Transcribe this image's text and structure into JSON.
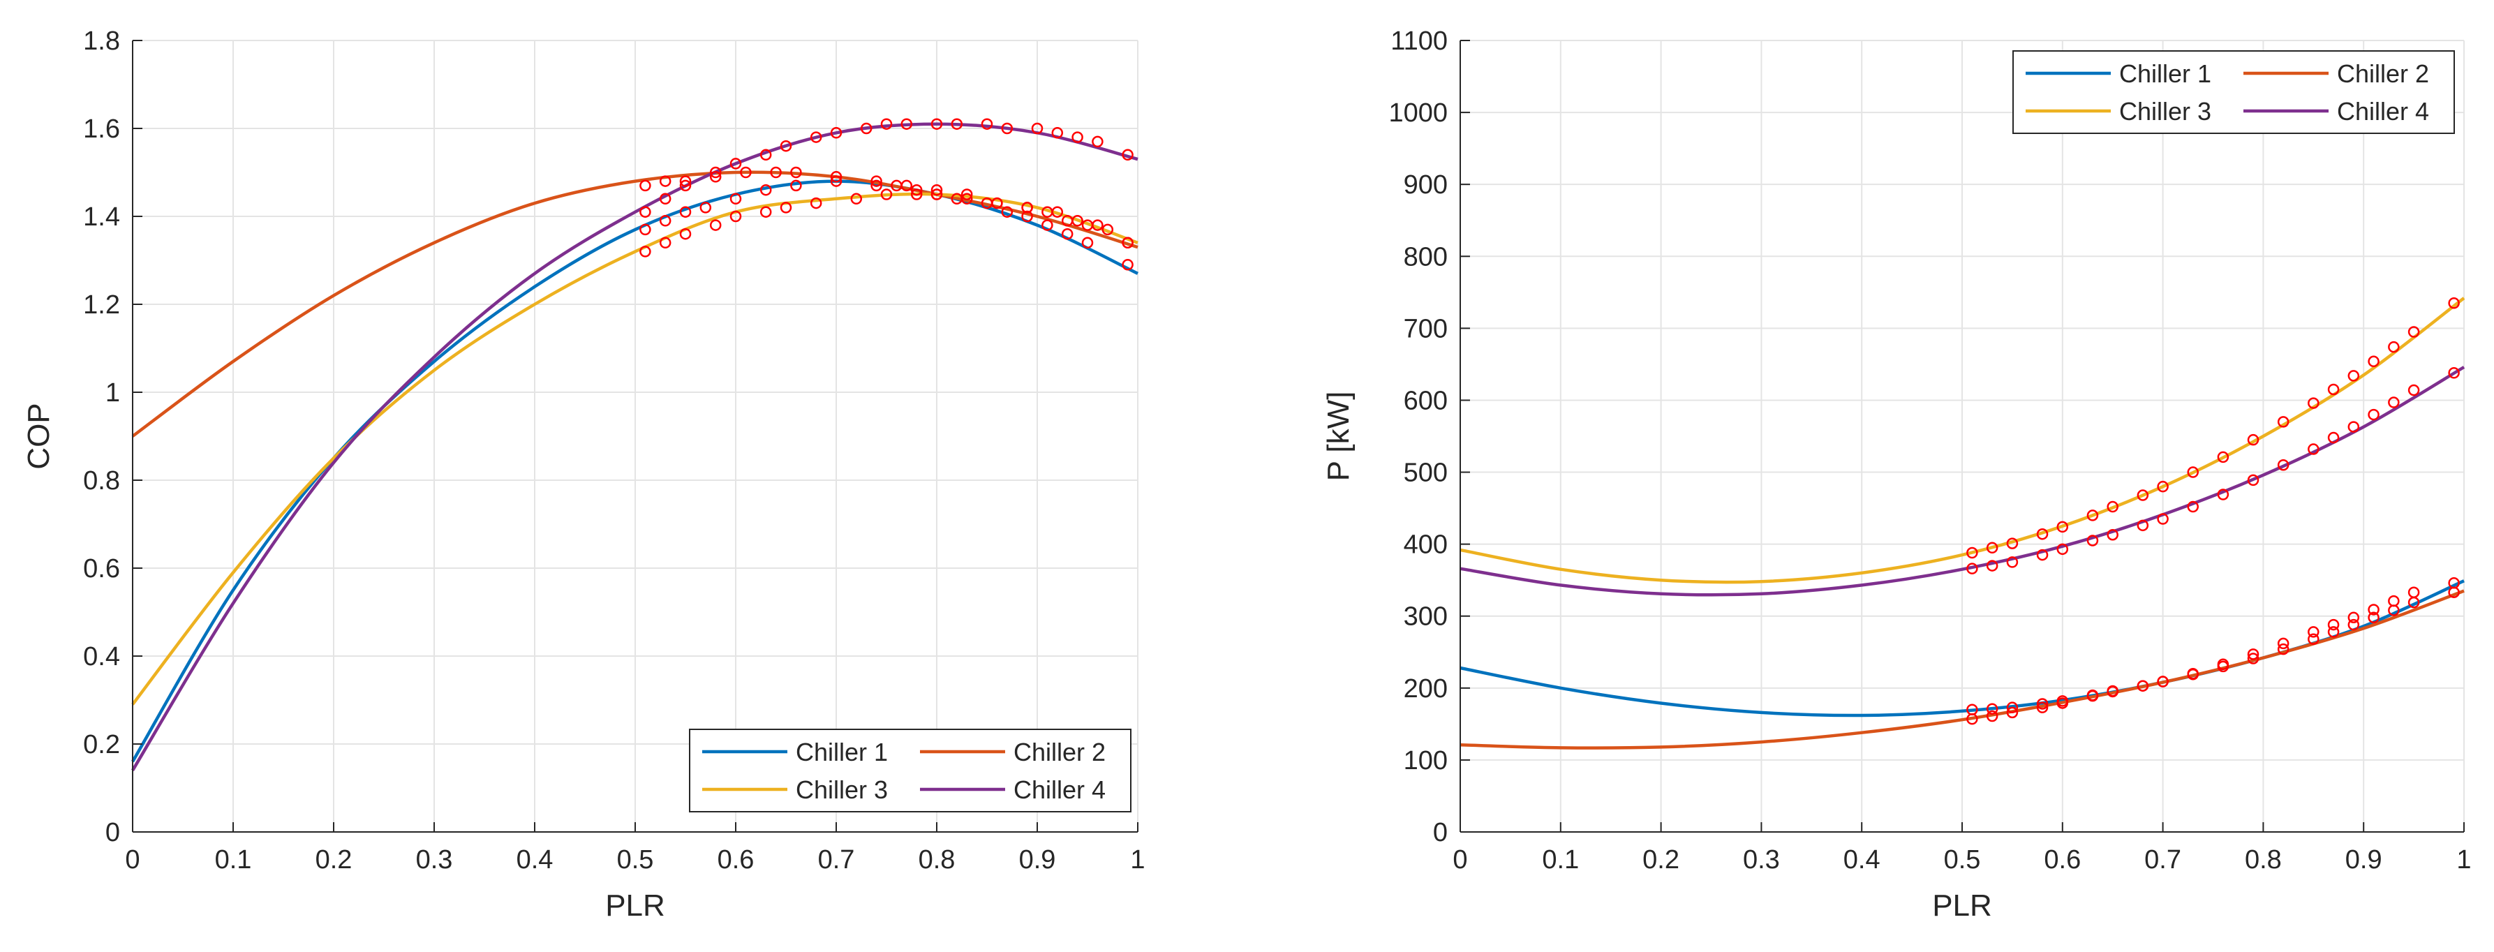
{
  "chart_data": [
    {
      "type": "line",
      "title": "",
      "xlabel": "PLR",
      "ylabel": "COP",
      "xlim": [
        0,
        1
      ],
      "ylim": [
        0,
        1.8
      ],
      "xticks": [
        0,
        0.1,
        0.2,
        0.3,
        0.4,
        0.5,
        0.6,
        0.7,
        0.8,
        0.9,
        1
      ],
      "yticks": [
        0,
        0.2,
        0.4,
        0.6,
        0.8,
        1,
        1.2,
        1.4,
        1.6,
        1.8
      ],
      "x_tick_labels": [
        "0",
        "0.1",
        "0.2",
        "0.3",
        "0.4",
        "0.5",
        "0.6",
        "0.7",
        "0.8",
        "0.9",
        "1"
      ],
      "y_tick_labels": [
        "0",
        "0.2",
        "0.4",
        "0.6",
        "0.8",
        "1",
        "1.2",
        "1.4",
        "1.6",
        "1.8"
      ],
      "grid": true,
      "legend_position": "bottom-right",
      "series": [
        {
          "name": "Chiller 1",
          "color": "#0072BD",
          "x": [
            0,
            0.1,
            0.2,
            0.3,
            0.4,
            0.5,
            0.6,
            0.7,
            0.8,
            0.9,
            1
          ],
          "values": [
            0.16,
            0.55,
            0.85,
            1.07,
            1.24,
            1.37,
            1.45,
            1.48,
            1.45,
            1.38,
            1.27
          ]
        },
        {
          "name": "Chiller 2",
          "color": "#D95319",
          "x": [
            0,
            0.1,
            0.2,
            0.3,
            0.4,
            0.5,
            0.6,
            0.7,
            0.8,
            0.9,
            1
          ],
          "values": [
            0.9,
            1.07,
            1.22,
            1.34,
            1.43,
            1.48,
            1.5,
            1.49,
            1.45,
            1.4,
            1.33
          ]
        },
        {
          "name": "Chiller 3",
          "color": "#EDB120",
          "x": [
            0,
            0.1,
            0.2,
            0.3,
            0.4,
            0.5,
            0.6,
            0.7,
            0.8,
            0.9,
            1
          ],
          "values": [
            0.29,
            0.59,
            0.85,
            1.05,
            1.2,
            1.32,
            1.41,
            1.44,
            1.45,
            1.42,
            1.34
          ]
        },
        {
          "name": "Chiller 4",
          "color": "#7E2F8E",
          "x": [
            0,
            0.1,
            0.2,
            0.3,
            0.4,
            0.5,
            0.6,
            0.7,
            0.8,
            0.9,
            1
          ],
          "values": [
            0.14,
            0.52,
            0.84,
            1.08,
            1.27,
            1.41,
            1.52,
            1.59,
            1.61,
            1.59,
            1.53
          ]
        }
      ],
      "markers": [
        {
          "series": "Chiller 1",
          "x": [
            0.51,
            0.53,
            0.55,
            0.57,
            0.6,
            0.63,
            0.66,
            0.7,
            0.74,
            0.76,
            0.78,
            0.8,
            0.82,
            0.85,
            0.87,
            0.89,
            0.91,
            0.93,
            0.95,
            0.99
          ],
          "values": [
            1.37,
            1.39,
            1.41,
            1.42,
            1.44,
            1.46,
            1.47,
            1.48,
            1.47,
            1.47,
            1.46,
            1.45,
            1.44,
            1.43,
            1.41,
            1.4,
            1.38,
            1.36,
            1.34,
            1.29
          ]
        },
        {
          "series": "Chiller 2",
          "x": [
            0.51,
            0.53,
            0.55,
            0.58,
            0.61,
            0.64,
            0.66,
            0.7,
            0.74,
            0.77,
            0.8,
            0.83,
            0.86,
            0.89,
            0.91,
            0.93,
            0.95,
            0.97,
            0.99
          ],
          "values": [
            1.47,
            1.48,
            1.48,
            1.49,
            1.5,
            1.5,
            1.5,
            1.49,
            1.48,
            1.47,
            1.46,
            1.45,
            1.43,
            1.42,
            1.41,
            1.39,
            1.38,
            1.37,
            1.34
          ]
        },
        {
          "series": "Chiller 3",
          "x": [
            0.51,
            0.53,
            0.55,
            0.58,
            0.6,
            0.63,
            0.65,
            0.68,
            0.72,
            0.75,
            0.78,
            0.8,
            0.83,
            0.86,
            0.89,
            0.92,
            0.94,
            0.96,
            0.99
          ],
          "values": [
            1.32,
            1.34,
            1.36,
            1.38,
            1.4,
            1.41,
            1.42,
            1.43,
            1.44,
            1.45,
            1.45,
            1.45,
            1.44,
            1.43,
            1.42,
            1.41,
            1.39,
            1.38,
            1.34
          ]
        },
        {
          "series": "Chiller 4",
          "x": [
            0.51,
            0.53,
            0.55,
            0.58,
            0.6,
            0.63,
            0.65,
            0.68,
            0.7,
            0.73,
            0.75,
            0.77,
            0.8,
            0.82,
            0.85,
            0.87,
            0.9,
            0.92,
            0.94,
            0.96,
            0.99
          ],
          "values": [
            1.41,
            1.44,
            1.47,
            1.5,
            1.52,
            1.54,
            1.56,
            1.58,
            1.59,
            1.6,
            1.61,
            1.61,
            1.61,
            1.61,
            1.61,
            1.6,
            1.6,
            1.59,
            1.58,
            1.57,
            1.54
          ]
        }
      ]
    },
    {
      "type": "line",
      "title": "",
      "xlabel": "PLR",
      "ylabel": "P [kW]",
      "xlim": [
        0,
        1
      ],
      "ylim": [
        0,
        1100
      ],
      "xticks": [
        0,
        0.1,
        0.2,
        0.3,
        0.4,
        0.5,
        0.6,
        0.7,
        0.8,
        0.9,
        1
      ],
      "yticks": [
        0,
        100,
        200,
        300,
        400,
        500,
        600,
        700,
        800,
        900,
        1000,
        1100
      ],
      "x_tick_labels": [
        "0",
        "0.1",
        "0.2",
        "0.3",
        "0.4",
        "0.5",
        "0.6",
        "0.7",
        "0.8",
        "0.9",
        "1"
      ],
      "y_tick_labels": [
        "0",
        "100",
        "200",
        "300",
        "400",
        "500",
        "600",
        "700",
        "800",
        "900",
        "1000",
        "1100"
      ],
      "grid": true,
      "legend_position": "top-right",
      "series": [
        {
          "name": "Chiller 1",
          "color": "#0072BD",
          "x": [
            0,
            0.1,
            0.2,
            0.3,
            0.4,
            0.5,
            0.6,
            0.7,
            0.8,
            0.9,
            1
          ],
          "values": [
            228,
            200,
            179,
            166,
            162,
            168,
            183,
            208,
            242,
            286,
            349
          ]
        },
        {
          "name": "Chiller 2",
          "color": "#D95319",
          "x": [
            0,
            0.1,
            0.2,
            0.3,
            0.4,
            0.5,
            0.6,
            0.7,
            0.8,
            0.9,
            1
          ],
          "values": [
            121,
            117,
            118,
            125,
            138,
            156,
            180,
            208,
            242,
            283,
            335
          ]
        },
        {
          "name": "Chiller 3",
          "color": "#EDB120",
          "x": [
            0,
            0.1,
            0.2,
            0.3,
            0.4,
            0.5,
            0.6,
            0.7,
            0.8,
            0.9,
            1
          ],
          "values": [
            392,
            365,
            350,
            348,
            360,
            385,
            425,
            480,
            550,
            635,
            742
          ]
        },
        {
          "name": "Chiller 4",
          "color": "#7E2F8E",
          "x": [
            0,
            0.1,
            0.2,
            0.3,
            0.4,
            0.5,
            0.6,
            0.7,
            0.8,
            0.9,
            1
          ],
          "values": [
            366,
            343,
            331,
            331,
            343,
            365,
            397,
            441,
            496,
            563,
            646
          ]
        }
      ],
      "markers": [
        {
          "series": "Chiller 1",
          "x": [
            0.51,
            0.53,
            0.55,
            0.58,
            0.6,
            0.63,
            0.65,
            0.68,
            0.7,
            0.73,
            0.76,
            0.79,
            0.82,
            0.85,
            0.87,
            0.89,
            0.91,
            0.93,
            0.95,
            0.99
          ],
          "values": [
            170,
            171,
            173,
            178,
            182,
            190,
            196,
            203,
            209,
            220,
            233,
            247,
            262,
            278,
            288,
            298,
            309,
            321,
            333,
            346
          ]
        },
        {
          "series": "Chiller 2",
          "x": [
            0.51,
            0.53,
            0.55,
            0.58,
            0.6,
            0.63,
            0.65,
            0.68,
            0.7,
            0.73,
            0.76,
            0.79,
            0.82,
            0.85,
            0.87,
            0.89,
            0.91,
            0.93,
            0.95,
            0.99
          ],
          "values": [
            157,
            161,
            166,
            173,
            179,
            189,
            195,
            203,
            209,
            219,
            230,
            241,
            254,
            268,
            278,
            288,
            298,
            308,
            319,
            333
          ]
        },
        {
          "series": "Chiller 3",
          "x": [
            0.51,
            0.53,
            0.55,
            0.58,
            0.6,
            0.63,
            0.65,
            0.68,
            0.7,
            0.73,
            0.76,
            0.79,
            0.82,
            0.85,
            0.87,
            0.89,
            0.91,
            0.93,
            0.95,
            0.99
          ],
          "values": [
            388,
            395,
            401,
            414,
            424,
            440,
            452,
            468,
            480,
            500,
            521,
            545,
            570,
            596,
            615,
            634,
            654,
            674,
            695,
            735
          ]
        },
        {
          "series": "Chiller 4",
          "x": [
            0.51,
            0.53,
            0.55,
            0.58,
            0.6,
            0.63,
            0.65,
            0.68,
            0.7,
            0.73,
            0.76,
            0.79,
            0.82,
            0.85,
            0.87,
            0.89,
            0.91,
            0.93,
            0.95,
            0.99
          ],
          "values": [
            366,
            370,
            375,
            385,
            393,
            405,
            413,
            426,
            435,
            452,
            469,
            489,
            510,
            532,
            548,
            563,
            580,
            597,
            614,
            638
          ]
        }
      ]
    }
  ],
  "marker_color": "#FF0000"
}
